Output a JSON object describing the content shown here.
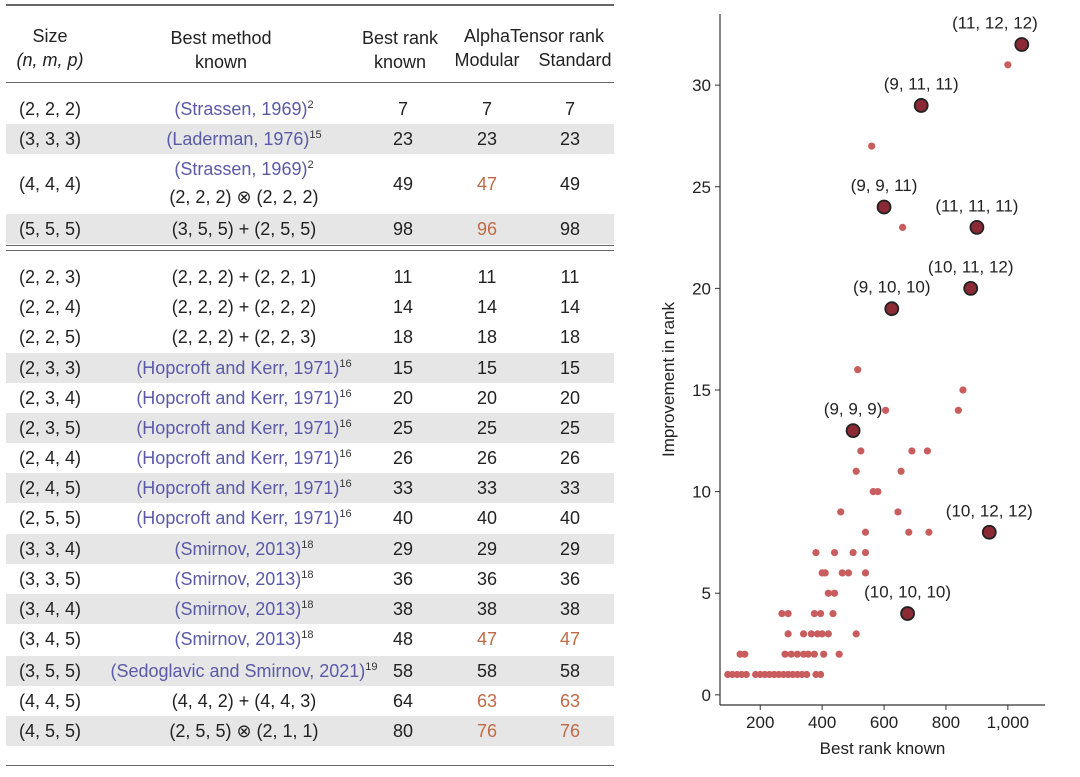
{
  "table": {
    "headers": {
      "size_line1": "Size",
      "size_line2": "(n, m, p)",
      "method_line1": "Best method",
      "method_line2": "known",
      "rank_line1": "Best rank",
      "rank_line2": "known",
      "alpha_line1": "AlphaTensor rank",
      "alpha_mod": "Modular",
      "alpha_std": "Standard"
    },
    "rows": [
      {
        "size": "(2, 2, 2)",
        "method": "(Strassen, 1969)",
        "sup": "2",
        "cite": true,
        "best": "7",
        "mod": "7",
        "std": "7",
        "mod_imp": false,
        "std_imp": false,
        "shade": false
      },
      {
        "size": "(3, 3, 3)",
        "method": "(Laderman, 1976)",
        "sup": "15",
        "cite": true,
        "best": "23",
        "mod": "23",
        "std": "23",
        "mod_imp": false,
        "std_imp": false,
        "shade": true
      },
      {
        "size": "(4, 4, 4)",
        "method": "(Strassen, 1969)",
        "sup": "2",
        "cite": true,
        "method2": "(2, 2, 2) ⊗ (2, 2, 2)",
        "best": "49",
        "mod": "47",
        "std": "49",
        "mod_imp": true,
        "std_imp": false,
        "shade": false
      },
      {
        "size": "(5, 5, 5)",
        "method": "(3, 5, 5) + (2, 5, 5)",
        "sup": "",
        "cite": false,
        "best": "98",
        "mod": "96",
        "std": "98",
        "mod_imp": true,
        "std_imp": false,
        "shade": true
      },
      {
        "size": "(2, 2, 3)",
        "method": "(2, 2, 2) + (2, 2, 1)",
        "sup": "",
        "cite": false,
        "best": "11",
        "mod": "11",
        "std": "11",
        "mod_imp": false,
        "std_imp": false,
        "shade": false
      },
      {
        "size": "(2, 2, 4)",
        "method": "(2, 2, 2) + (2, 2, 2)",
        "sup": "",
        "cite": false,
        "best": "14",
        "mod": "14",
        "std": "14",
        "mod_imp": false,
        "std_imp": false,
        "shade": false
      },
      {
        "size": "(2, 2, 5)",
        "method": "(2, 2, 2) + (2, 2, 3)",
        "sup": "",
        "cite": false,
        "best": "18",
        "mod": "18",
        "std": "18",
        "mod_imp": false,
        "std_imp": false,
        "shade": false
      },
      {
        "size": "(2, 3, 3)",
        "method": "(Hopcroft and Kerr, 1971)",
        "sup": "16",
        "cite": true,
        "best": "15",
        "mod": "15",
        "std": "15",
        "mod_imp": false,
        "std_imp": false,
        "shade": true
      },
      {
        "size": "(2, 3, 4)",
        "method": "(Hopcroft and Kerr, 1971)",
        "sup": "16",
        "cite": true,
        "best": "20",
        "mod": "20",
        "std": "20",
        "mod_imp": false,
        "std_imp": false,
        "shade": false
      },
      {
        "size": "(2, 3, 5)",
        "method": "(Hopcroft and Kerr, 1971)",
        "sup": "16",
        "cite": true,
        "best": "25",
        "mod": "25",
        "std": "25",
        "mod_imp": false,
        "std_imp": false,
        "shade": true
      },
      {
        "size": "(2, 4, 4)",
        "method": "(Hopcroft and Kerr, 1971)",
        "sup": "16",
        "cite": true,
        "best": "26",
        "mod": "26",
        "std": "26",
        "mod_imp": false,
        "std_imp": false,
        "shade": false
      },
      {
        "size": "(2, 4, 5)",
        "method": "(Hopcroft and Kerr, 1971)",
        "sup": "16",
        "cite": true,
        "best": "33",
        "mod": "33",
        "std": "33",
        "mod_imp": false,
        "std_imp": false,
        "shade": true
      },
      {
        "size": "(2, 5, 5)",
        "method": "(Hopcroft and Kerr, 1971)",
        "sup": "16",
        "cite": true,
        "best": "40",
        "mod": "40",
        "std": "40",
        "mod_imp": false,
        "std_imp": false,
        "shade": false
      },
      {
        "size": "(3, 3, 4)",
        "method": "(Smirnov, 2013)",
        "sup": "18",
        "cite": true,
        "best": "29",
        "mod": "29",
        "std": "29",
        "mod_imp": false,
        "std_imp": false,
        "shade": true
      },
      {
        "size": "(3, 3, 5)",
        "method": "(Smirnov, 2013)",
        "sup": "18",
        "cite": true,
        "best": "36",
        "mod": "36",
        "std": "36",
        "mod_imp": false,
        "std_imp": false,
        "shade": false
      },
      {
        "size": "(3, 4, 4)",
        "method": "(Smirnov, 2013)",
        "sup": "18",
        "cite": true,
        "best": "38",
        "mod": "38",
        "std": "38",
        "mod_imp": false,
        "std_imp": false,
        "shade": true
      },
      {
        "size": "(3, 4, 5)",
        "method": "(Smirnov, 2013)",
        "sup": "18",
        "cite": true,
        "best": "48",
        "mod": "47",
        "std": "47",
        "mod_imp": true,
        "std_imp": true,
        "shade": false
      },
      {
        "size": "(3, 5, 5)",
        "method": "(Sedoglavic and Smirnov, 2021)",
        "sup": "19",
        "cite": true,
        "best": "58",
        "mod": "58",
        "std": "58",
        "mod_imp": false,
        "std_imp": false,
        "shade": true
      },
      {
        "size": "(4, 4, 5)",
        "method": "(4, 4, 2) + (4, 4, 3)",
        "sup": "",
        "cite": false,
        "best": "64",
        "mod": "63",
        "std": "63",
        "mod_imp": true,
        "std_imp": true,
        "shade": false
      },
      {
        "size": "(4, 5, 5)",
        "method": "(2, 5, 5) ⊗ (2, 1, 1)",
        "sup": "",
        "cite": false,
        "best": "80",
        "mod": "76",
        "std": "76",
        "mod_imp": true,
        "std_imp": true,
        "shade": true
      }
    ]
  },
  "chart_data": {
    "type": "scatter",
    "title": "",
    "xlabel": "Best rank known",
    "ylabel": "Improvement in rank",
    "xlim": [
      70,
      1120
    ],
    "ylim": [
      -0.5,
      33.5
    ],
    "xticks": [
      "200",
      "400",
      "600",
      "800",
      "1,000"
    ],
    "xtick_values": [
      200,
      400,
      600,
      800,
      1000
    ],
    "yticks": [
      "0",
      "5",
      "10",
      "15",
      "20",
      "25",
      "30"
    ],
    "ytick_values": [
      0,
      5,
      10,
      15,
      20,
      25,
      30
    ],
    "colors": {
      "small_point": "#c95d5d",
      "labeled_fill": "#8b2a35",
      "labeled_stroke": "#222222"
    },
    "points": [
      [
        95,
        1
      ],
      [
        110,
        1
      ],
      [
        125,
        1
      ],
      [
        140,
        1
      ],
      [
        155,
        1
      ],
      [
        135,
        2
      ],
      [
        150,
        2
      ],
      [
        185,
        1
      ],
      [
        200,
        1
      ],
      [
        215,
        1
      ],
      [
        230,
        1
      ],
      [
        245,
        1
      ],
      [
        260,
        1
      ],
      [
        275,
        1
      ],
      [
        290,
        1
      ],
      [
        305,
        1
      ],
      [
        320,
        1
      ],
      [
        335,
        1
      ],
      [
        350,
        1
      ],
      [
        380,
        1
      ],
      [
        395,
        1
      ],
      [
        280,
        2
      ],
      [
        300,
        2
      ],
      [
        320,
        2
      ],
      [
        340,
        2
      ],
      [
        355,
        2
      ],
      [
        375,
        2
      ],
      [
        405,
        2
      ],
      [
        455,
        2
      ],
      [
        290,
        3
      ],
      [
        340,
        3
      ],
      [
        365,
        3
      ],
      [
        385,
        3
      ],
      [
        400,
        3
      ],
      [
        420,
        3
      ],
      [
        510,
        3
      ],
      [
        270,
        4
      ],
      [
        290,
        4
      ],
      [
        375,
        4
      ],
      [
        395,
        4
      ],
      [
        435,
        4
      ],
      [
        420,
        5
      ],
      [
        440,
        5
      ],
      [
        400,
        6
      ],
      [
        410,
        6
      ],
      [
        465,
        6
      ],
      [
        485,
        6
      ],
      [
        540,
        6
      ],
      [
        380,
        7
      ],
      [
        440,
        7
      ],
      [
        500,
        7
      ],
      [
        540,
        7
      ],
      [
        540,
        8
      ],
      [
        680,
        8
      ],
      [
        745,
        8
      ],
      [
        460,
        9
      ],
      [
        645,
        9
      ],
      [
        565,
        10
      ],
      [
        580,
        10
      ],
      [
        510,
        11
      ],
      [
        655,
        11
      ],
      [
        525,
        12
      ],
      [
        690,
        12
      ],
      [
        740,
        12
      ],
      [
        605,
        14
      ],
      [
        840,
        14
      ],
      [
        855,
        15
      ],
      [
        515,
        16
      ],
      [
        660,
        23
      ],
      [
        560,
        27
      ],
      [
        1000,
        31
      ]
    ],
    "labeled_points": [
      {
        "label": "(11, 12, 12)",
        "x": 1045,
        "y": 32
      },
      {
        "label": "(9, 11, 11)",
        "x": 720,
        "y": 29
      },
      {
        "label": "(9, 9, 11)",
        "x": 600,
        "y": 24
      },
      {
        "label": "(11, 11, 11)",
        "x": 900,
        "y": 23
      },
      {
        "label": "(10, 11, 12)",
        "x": 880,
        "y": 20
      },
      {
        "label": "(9, 10, 10)",
        "x": 625,
        "y": 19
      },
      {
        "label": "(9, 9, 9)",
        "x": 500,
        "y": 13
      },
      {
        "label": "(10, 12, 12)",
        "x": 940,
        "y": 8
      },
      {
        "label": "(10, 10, 10)",
        "x": 676,
        "y": 4
      }
    ]
  }
}
